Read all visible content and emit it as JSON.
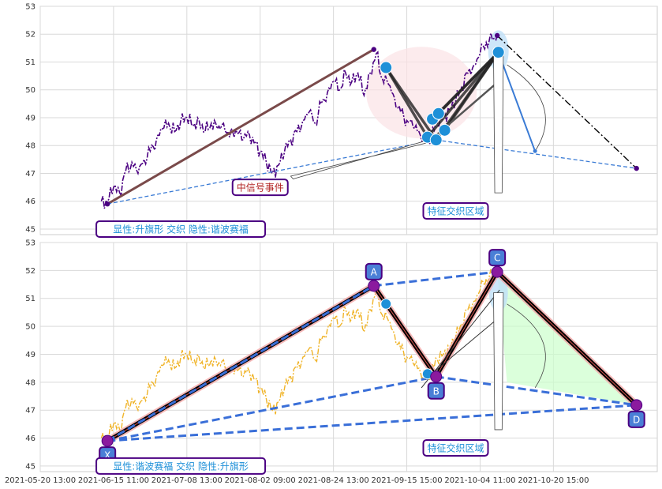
{
  "chart_data": [
    {
      "type": "line",
      "panel": "top",
      "ylim": [
        44.8,
        53
      ],
      "yticks": [
        45,
        46,
        47,
        48,
        49,
        50,
        51,
        52,
        53
      ],
      "grid": true,
      "series_colors": {
        "price": "#4b0082",
        "trend": "#7a4a4a",
        "dashed": "#3a7bd5",
        "dashdot": "#000000"
      },
      "price_path": [
        [
          0,
          46.0
        ],
        [
          0.5,
          46.0
        ],
        [
          1,
          46.5
        ],
        [
          1.5,
          46.3
        ],
        [
          2,
          47.1
        ],
        [
          2.5,
          47.4
        ],
        [
          3,
          47.0
        ],
        [
          3.5,
          47.5
        ],
        [
          4,
          47.8
        ],
        [
          4.5,
          48.2
        ],
        [
          5,
          48.6
        ],
        [
          5.5,
          48.8
        ],
        [
          6,
          48.5
        ],
        [
          6.5,
          48.9
        ],
        [
          7,
          49.0
        ],
        [
          7.5,
          48.7
        ],
        [
          8,
          48.9
        ],
        [
          8.5,
          48.5
        ],
        [
          9,
          48.8
        ],
        [
          9.5,
          48.6
        ],
        [
          10,
          48.8
        ],
        [
          10.5,
          48.3
        ],
        [
          11,
          48.6
        ],
        [
          11.5,
          48.2
        ],
        [
          12,
          48.5
        ],
        [
          12.5,
          48.1
        ],
        [
          13,
          47.8
        ],
        [
          13.5,
          47.4
        ],
        [
          14,
          47.0
        ],
        [
          14.5,
          47.3
        ],
        [
          15,
          47.8
        ],
        [
          15.5,
          48.2
        ],
        [
          16,
          48.5
        ],
        [
          16.5,
          48.9
        ],
        [
          17,
          49.2
        ],
        [
          17.5,
          48.8
        ],
        [
          18,
          49.5
        ],
        [
          18.5,
          49.9
        ],
        [
          19,
          50.3
        ],
        [
          19.5,
          50.0
        ],
        [
          20,
          50.6
        ],
        [
          20.5,
          50.3
        ],
        [
          21,
          50.6
        ],
        [
          21.5,
          49.8
        ],
        [
          22,
          50.6
        ],
        [
          22.5,
          51.3
        ],
        [
          23,
          50.4
        ],
        [
          23.5,
          50.2
        ],
        [
          24,
          49.7
        ],
        [
          24.5,
          49.2
        ],
        [
          25,
          48.9
        ],
        [
          25.5,
          48.7
        ],
        [
          26,
          48.5
        ],
        [
          26.5,
          48.2
        ],
        [
          27,
          48.4
        ],
        [
          27.5,
          48.8
        ],
        [
          28,
          49.0
        ],
        [
          28.5,
          49.3
        ],
        [
          29,
          49.6
        ],
        [
          29.5,
          50.1
        ],
        [
          30,
          50.6
        ],
        [
          30.5,
          50.9
        ],
        [
          31,
          51.3
        ],
        [
          31.5,
          51.7
        ],
        [
          32,
          51.8
        ],
        [
          32.4,
          52.0
        ]
      ],
      "pivots": [
        [
          0.5,
          45.9
        ],
        [
          22.3,
          51.45
        ],
        [
          26.8,
          48.3
        ],
        [
          32.4,
          51.95
        ],
        [
          43.8,
          47.18
        ]
      ],
      "retrace_points": [
        [
          23.3,
          50.8
        ],
        [
          26.7,
          48.3
        ],
        [
          27.1,
          48.95
        ],
        [
          27.4,
          48.2
        ],
        [
          27.6,
          49.15
        ],
        [
          28.1,
          48.55
        ],
        [
          32.5,
          51.35
        ]
      ],
      "convergence_point": [
        35.5,
        47.8
      ],
      "labels": [
        "中信号事件",
        "特征交织区域",
        "显性:升旗形 交织 隐性:谐波赛福"
      ]
    },
    {
      "type": "line",
      "panel": "bottom",
      "ylim": [
        44.8,
        53
      ],
      "yticks": [
        45,
        46,
        47,
        48,
        49,
        50,
        51,
        52,
        53
      ],
      "grid": true,
      "series_colors": {
        "price": "#f0b429",
        "pattern": "#000000",
        "dashed": "#3a6fd8",
        "highlight": "#ccffcc"
      },
      "price_path_from_panel": "top",
      "xabcd": [
        {
          "label": "X",
          "x": 0.5,
          "y": 45.9
        },
        {
          "label": "A",
          "x": 22.3,
          "y": 51.45
        },
        {
          "label": "B",
          "x": 27.4,
          "y": 48.2
        },
        {
          "label": "C",
          "x": 32.4,
          "y": 51.95
        },
        {
          "label": "D",
          "x": 43.8,
          "y": 47.18
        }
      ],
      "retrace_points": [
        [
          23.3,
          50.8
        ],
        [
          26.7,
          48.3
        ]
      ],
      "labels": [
        "特征交织区域",
        "显性:谐波赛福 交织 隐性:升旗形"
      ]
    }
  ],
  "x_axis": {
    "range": [
      -5,
      45.5
    ],
    "ticks": [
      {
        "x": -5,
        "label": "2021-05-20 13:00"
      },
      {
        "x": 1,
        "label": "2021-06-15 11:00"
      },
      {
        "x": 7,
        "label": "2021-07-08 13:00"
      },
      {
        "x": 13,
        "label": "2021-08-02 09:00"
      },
      {
        "x": 19,
        "label": "2021-08-24 13:00"
      },
      {
        "x": 25,
        "label": "2021-09-15 15:00"
      },
      {
        "x": 31,
        "label": "2021-10-04 11:00"
      },
      {
        "x": 37,
        "label": "2021-10-20 15:00"
      }
    ]
  },
  "text": {
    "top_signal": "中信号事件",
    "top_zone": "特征交织区域",
    "top_pattern": "显性:升旗形 交织 隐性:谐波赛福",
    "bottom_zone": "特征交织区域",
    "bottom_pattern": "显性:谐波赛福 交织 隐性:升旗形"
  }
}
